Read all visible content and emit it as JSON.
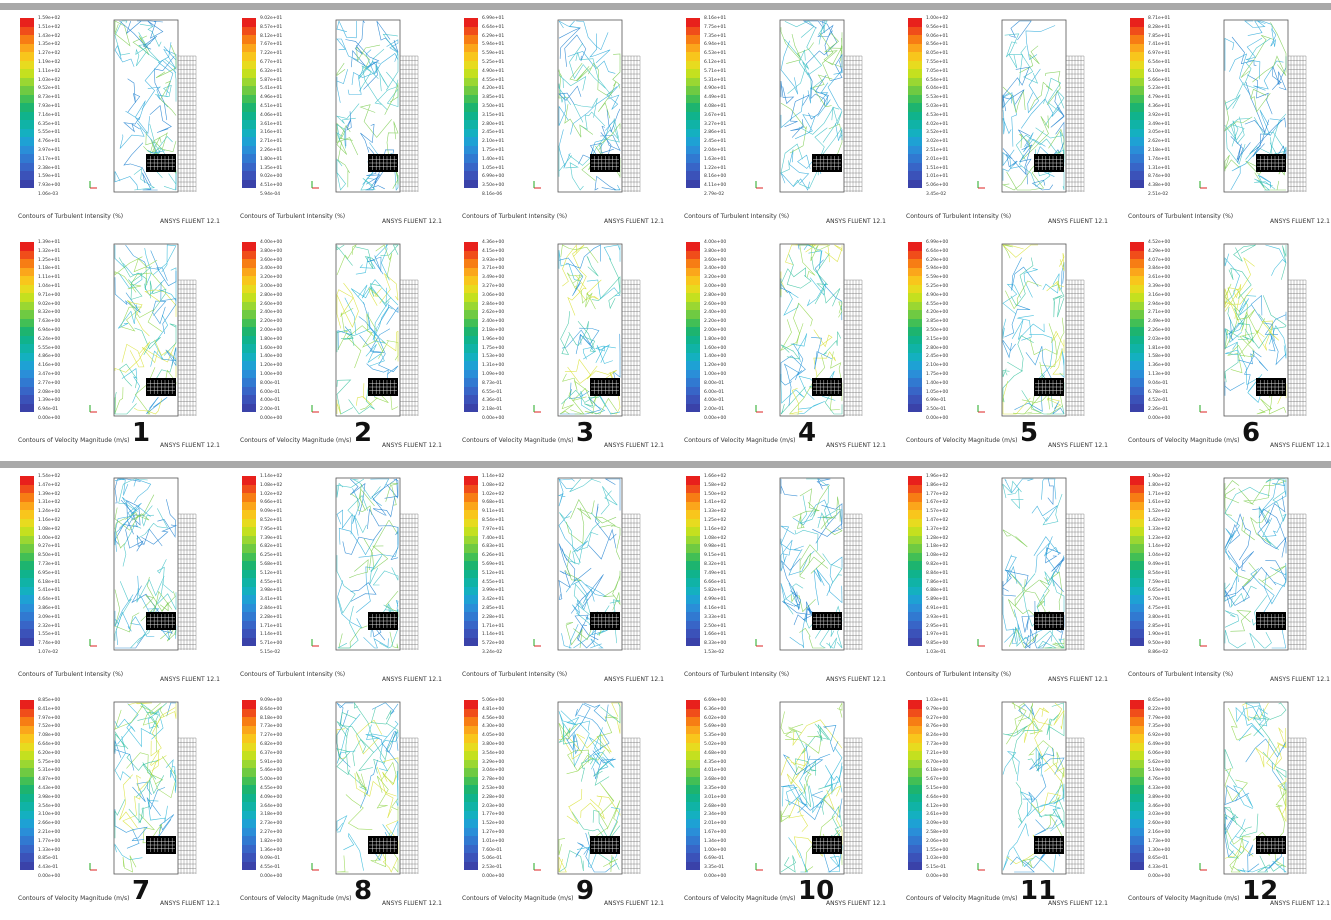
{
  "software_label": "ANSYS FLUENT 12.1",
  "colormap": [
    "#e8201c",
    "#f04d1a",
    "#f77d14",
    "#fba61b",
    "#f8c61c",
    "#e7db1f",
    "#c4e01f",
    "#9ad732",
    "#6fca42",
    "#42bf55",
    "#1db46f",
    "#10b38c",
    "#10b3a6",
    "#14b0c0",
    "#1ea1d4",
    "#2a8ed8",
    "#3179d1",
    "#3865c7",
    "#3b52b9",
    "#3a42a9"
  ],
  "groups": [
    {
      "row_top": [
        {
          "title": "Contours of Turbulent Intensity (%)",
          "ticks": [
            "1.59e+02",
            "1.51e+02",
            "1.43e+02",
            "1.35e+02",
            "1.27e+02",
            "1.19e+02",
            "1.11e+02",
            "1.03e+02",
            "9.52e+01",
            "8.73e+01",
            "7.93e+01",
            "7.14e+01",
            "6.35e+01",
            "5.55e+01",
            "4.76e+01",
            "3.97e+01",
            "3.17e+01",
            "2.38e+01",
            "1.59e+01",
            "7.93e+00",
            "1.06e-03"
          ]
        },
        {
          "title": "Contours of Turbulent Intensity (%)",
          "ticks": [
            "9.02e+01",
            "8.57e+01",
            "8.12e+01",
            "7.67e+01",
            "7.22e+01",
            "6.77e+01",
            "6.32e+01",
            "5.87e+01",
            "5.41e+01",
            "4.96e+01",
            "4.51e+01",
            "4.06e+01",
            "3.61e+01",
            "3.16e+01",
            "2.71e+01",
            "2.26e+01",
            "1.80e+01",
            "1.35e+01",
            "9.02e+00",
            "4.51e+00",
            "5.94e-04"
          ]
        },
        {
          "title": "Contours of Turbulent Intensity (%)",
          "ticks": [
            "6.99e+01",
            "6.64e+01",
            "6.29e+01",
            "5.94e+01",
            "5.59e+01",
            "5.25e+01",
            "4.90e+01",
            "4.55e+01",
            "4.20e+01",
            "3.85e+01",
            "3.50e+01",
            "3.15e+01",
            "2.80e+01",
            "2.45e+01",
            "2.10e+01",
            "1.75e+01",
            "1.40e+01",
            "1.05e+01",
            "6.99e+00",
            "3.50e+00",
            "8.16e-06"
          ]
        },
        {
          "title": "Contours of Turbulent Intensity (%)",
          "ticks": [
            "8.16e+01",
            "7.75e+01",
            "7.35e+01",
            "6.94e+01",
            "6.53e+01",
            "6.12e+01",
            "5.71e+01",
            "5.31e+01",
            "4.90e+01",
            "4.49e+01",
            "4.08e+01",
            "3.67e+01",
            "3.27e+01",
            "2.86e+01",
            "2.45e+01",
            "2.04e+01",
            "1.63e+01",
            "1.22e+01",
            "8.16e+00",
            "4.11e+00",
            "2.79e-02"
          ]
        },
        {
          "title": "Contours of Turbulent Intensity (%)",
          "ticks": [
            "1.00e+02",
            "9.56e+01",
            "9.06e+01",
            "8.56e+01",
            "8.05e+01",
            "7.55e+01",
            "7.05e+01",
            "6.54e+01",
            "6.04e+01",
            "5.53e+01",
            "5.03e+01",
            "4.53e+01",
            "4.02e+01",
            "3.52e+01",
            "3.02e+01",
            "2.51e+01",
            "2.01e+01",
            "1.51e+01",
            "1.01e+01",
            "5.06e+00",
            "3.45e-02"
          ]
        },
        {
          "title": "Contours of Turbulent Intensity (%)",
          "ticks": [
            "8.71e+01",
            "8.28e+01",
            "7.85e+01",
            "7.41e+01",
            "6.97e+01",
            "6.54e+01",
            "6.10e+01",
            "5.66e+01",
            "5.23e+01",
            "4.79e+01",
            "4.36e+01",
            "3.92e+01",
            "3.49e+01",
            "3.05e+01",
            "2.62e+01",
            "2.18e+01",
            "1.74e+01",
            "1.31e+01",
            "8.74e+00",
            "4.38e+00",
            "2.51e-02"
          ]
        }
      ],
      "row_bottom": [
        {
          "title": "Contours of Velocity Magnitude (m/s)",
          "num": "1",
          "ticks": [
            "1.39e+01",
            "1.32e+01",
            "1.25e+01",
            "1.18e+01",
            "1.11e+01",
            "1.04e+01",
            "9.71e+00",
            "9.02e+00",
            "8.32e+00",
            "7.63e+00",
            "6.94e+00",
            "6.24e+00",
            "5.55e+00",
            "4.86e+00",
            "4.16e+00",
            "3.47e+00",
            "2.77e+00",
            "2.08e+00",
            "1.39e+00",
            "6.94e-01",
            "0.00e+00"
          ]
        },
        {
          "title": "Contours of Velocity Magnitude (m/s)",
          "num": "2",
          "ticks": [
            "4.00e+00",
            "3.80e+00",
            "3.60e+00",
            "3.40e+00",
            "3.20e+00",
            "3.00e+00",
            "2.80e+00",
            "2.60e+00",
            "2.40e+00",
            "2.20e+00",
            "2.00e+00",
            "1.80e+00",
            "1.60e+00",
            "1.40e+00",
            "1.20e+00",
            "1.00e+00",
            "8.00e-01",
            "6.00e-01",
            "4.00e-01",
            "2.00e-01",
            "0.00e+00"
          ]
        },
        {
          "title": "Contours of Velocity Magnitude (m/s)",
          "num": "3",
          "ticks": [
            "4.36e+00",
            "4.15e+00",
            "3.93e+00",
            "3.71e+00",
            "3.49e+00",
            "3.27e+00",
            "3.06e+00",
            "2.84e+00",
            "2.62e+00",
            "2.40e+00",
            "2.18e+00",
            "1.96e+00",
            "1.75e+00",
            "1.53e+00",
            "1.31e+00",
            "1.09e+00",
            "8.73e-01",
            "6.55e-01",
            "4.36e-01",
            "2.18e-01",
            "0.00e+00"
          ]
        },
        {
          "title": "Contours of Velocity Magnitude (m/s)",
          "num": "4",
          "ticks": [
            "4.00e+00",
            "3.80e+00",
            "3.60e+00",
            "3.40e+00",
            "3.20e+00",
            "3.00e+00",
            "2.80e+00",
            "2.60e+00",
            "2.40e+00",
            "2.20e+00",
            "2.00e+00",
            "1.80e+00",
            "1.60e+00",
            "1.40e+00",
            "1.20e+00",
            "1.00e+00",
            "8.00e-01",
            "6.00e-01",
            "4.00e-01",
            "2.00e-01",
            "0.00e+00"
          ]
        },
        {
          "title": "Contours of Velocity Magnitude (m/s)",
          "num": "5",
          "ticks": [
            "6.99e+00",
            "6.64e+00",
            "6.29e+00",
            "5.94e+00",
            "5.59e+00",
            "5.25e+00",
            "4.90e+00",
            "4.55e+00",
            "4.20e+00",
            "3.85e+00",
            "3.50e+00",
            "3.15e+00",
            "2.80e+00",
            "2.45e+00",
            "2.10e+00",
            "1.75e+00",
            "1.40e+00",
            "1.05e+00",
            "6.99e-01",
            "3.50e-01",
            "0.00e+00"
          ]
        },
        {
          "title": "Contours of Velocity Magnitude (m/s)",
          "num": "6",
          "ticks": [
            "4.52e+00",
            "4.29e+00",
            "4.07e+00",
            "3.84e+00",
            "3.61e+00",
            "3.39e+00",
            "3.16e+00",
            "2.94e+00",
            "2.71e+00",
            "2.49e+00",
            "2.26e+00",
            "2.03e+00",
            "1.81e+00",
            "1.58e+00",
            "1.36e+00",
            "1.13e+00",
            "9.04e-01",
            "6.78e-01",
            "4.52e-01",
            "2.26e-01",
            "0.00e+00"
          ]
        }
      ]
    },
    {
      "row_top": [
        {
          "title": "Contours of Turbulent Intensity (%)",
          "ticks": [
            "1.54e+02",
            "1.47e+02",
            "1.39e+02",
            "1.31e+02",
            "1.24e+02",
            "1.16e+02",
            "1.08e+02",
            "1.00e+02",
            "9.27e+01",
            "8.50e+01",
            "7.73e+01",
            "6.95e+01",
            "6.18e+01",
            "5.41e+01",
            "4.64e+01",
            "3.86e+01",
            "3.09e+01",
            "2.32e+01",
            "1.55e+01",
            "7.74e+00",
            "1.07e-02"
          ]
        },
        {
          "title": "Contours of Turbulent Intensity (%)",
          "ticks": [
            "1.14e+02",
            "1.08e+02",
            "1.02e+02",
            "9.66e+01",
            "9.09e+01",
            "8.52e+01",
            "7.95e+01",
            "7.39e+01",
            "6.82e+01",
            "6.25e+01",
            "5.68e+01",
            "5.12e+01",
            "4.55e+01",
            "3.98e+01",
            "3.41e+01",
            "2.84e+01",
            "2.28e+01",
            "1.71e+01",
            "1.14e+01",
            "5.71e+00",
            "5.15e-02"
          ]
        },
        {
          "title": "Contours of Turbulent Intensity (%)",
          "ticks": [
            "1.14e+02",
            "1.08e+02",
            "1.02e+02",
            "9.68e+01",
            "9.11e+01",
            "8.54e+01",
            "7.97e+01",
            "7.40e+01",
            "6.83e+01",
            "6.26e+01",
            "5.69e+01",
            "5.12e+01",
            "4.55e+01",
            "3.99e+01",
            "3.42e+01",
            "2.85e+01",
            "2.28e+01",
            "1.71e+01",
            "1.14e+01",
            "5.72e+00",
            "3.24e-02"
          ]
        },
        {
          "title": "Contours of Turbulent Intensity (%)",
          "ticks": [
            "1.66e+02",
            "1.58e+02",
            "1.50e+02",
            "1.41e+02",
            "1.33e+02",
            "1.25e+02",
            "1.16e+02",
            "1.08e+02",
            "9.98e+01",
            "9.15e+01",
            "8.32e+01",
            "7.49e+01",
            "6.66e+01",
            "5.82e+01",
            "4.99e+01",
            "4.16e+01",
            "3.33e+01",
            "2.50e+01",
            "1.66e+01",
            "8.33e+00",
            "1.53e-02"
          ]
        },
        {
          "title": "Contours of Turbulent Intensity (%)",
          "ticks": [
            "1.96e+02",
            "1.86e+02",
            "1.77e+02",
            "1.67e+02",
            "1.57e+02",
            "1.47e+02",
            "1.37e+02",
            "1.28e+02",
            "1.18e+02",
            "1.08e+02",
            "9.82e+01",
            "8.84e+01",
            "7.86e+01",
            "6.88e+01",
            "5.89e+01",
            "4.91e+01",
            "3.93e+01",
            "2.95e+01",
            "1.97e+01",
            "9.85e+00",
            "1.03e-01"
          ]
        },
        {
          "title": "Contours of Turbulent Intensity (%)",
          "ticks": [
            "1.90e+02",
            "1.80e+02",
            "1.71e+02",
            "1.61e+02",
            "1.52e+02",
            "1.42e+02",
            "1.33e+02",
            "1.23e+02",
            "1.14e+02",
            "1.04e+02",
            "9.49e+01",
            "8.54e+01",
            "7.59e+01",
            "6.65e+01",
            "5.70e+01",
            "4.75e+01",
            "3.80e+01",
            "2.85e+01",
            "1.90e+01",
            "9.50e+00",
            "8.86e-02"
          ]
        }
      ],
      "row_bottom": [
        {
          "title": "Contours of Velocity Magnitude (m/s)",
          "num": "7",
          "ticks": [
            "8.85e+00",
            "8.41e+00",
            "7.97e+00",
            "7.52e+00",
            "7.08e+00",
            "6.64e+00",
            "6.20e+00",
            "5.75e+00",
            "5.31e+00",
            "4.87e+00",
            "4.43e+00",
            "3.98e+00",
            "3.54e+00",
            "3.10e+00",
            "2.66e+00",
            "2.21e+00",
            "1.77e+00",
            "1.33e+00",
            "8.85e-01",
            "4.43e-01",
            "0.00e+00"
          ]
        },
        {
          "title": "Contours of Velocity Magnitude (m/s)",
          "num": "8",
          "ticks": [
            "9.09e+00",
            "8.64e+00",
            "8.18e+00",
            "7.73e+00",
            "7.27e+00",
            "6.82e+00",
            "6.37e+00",
            "5.91e+00",
            "5.46e+00",
            "5.00e+00",
            "4.55e+00",
            "4.09e+00",
            "3.64e+00",
            "3.18e+00",
            "2.73e+00",
            "2.27e+00",
            "1.82e+00",
            "1.36e+00",
            "9.09e-01",
            "4.55e-01",
            "0.00e+00"
          ]
        },
        {
          "title": "Contours of Velocity Magnitude (m/s)",
          "num": "9",
          "ticks": [
            "5.06e+00",
            "4.81e+00",
            "4.56e+00",
            "4.30e+00",
            "4.05e+00",
            "3.80e+00",
            "3.54e+00",
            "3.29e+00",
            "3.04e+00",
            "2.78e+00",
            "2.53e+00",
            "2.28e+00",
            "2.03e+00",
            "1.77e+00",
            "1.52e+00",
            "1.27e+00",
            "1.01e+00",
            "7.60e-01",
            "5.06e-01",
            "2.53e-01",
            "0.00e+00"
          ]
        },
        {
          "title": "Contours of Velocity Magnitude (m/s)",
          "num": "10",
          "ticks": [
            "6.69e+00",
            "6.36e+00",
            "6.02e+00",
            "5.69e+00",
            "5.35e+00",
            "5.02e+00",
            "4.68e+00",
            "4.35e+00",
            "4.01e+00",
            "3.68e+00",
            "3.35e+00",
            "3.01e+00",
            "2.68e+00",
            "2.34e+00",
            "2.01e+00",
            "1.67e+00",
            "1.34e+00",
            "1.00e+00",
            "6.69e-01",
            "3.35e-01",
            "0.00e+00"
          ]
        },
        {
          "title": "Contours of Velocity Magnitude (m/s)",
          "num": "11",
          "ticks": [
            "1.03e+01",
            "9.79e+00",
            "9.27e+00",
            "8.76e+00",
            "8.24e+00",
            "7.73e+00",
            "7.21e+00",
            "6.70e+00",
            "6.18e+00",
            "5.67e+00",
            "5.15e+00",
            "4.64e+00",
            "4.12e+00",
            "3.61e+00",
            "3.09e+00",
            "2.58e+00",
            "2.06e+00",
            "1.55e+00",
            "1.03e+00",
            "5.15e-01",
            "0.00e+00"
          ]
        },
        {
          "title": "Contours of Velocity Magnitude (m/s)",
          "num": "12",
          "ticks": [
            "8.65e+00",
            "8.22e+00",
            "7.79e+00",
            "7.35e+00",
            "6.92e+00",
            "6.49e+00",
            "6.06e+00",
            "5.62e+00",
            "5.19e+00",
            "4.76e+00",
            "4.33e+00",
            "3.89e+00",
            "3.46e+00",
            "3.03e+00",
            "2.60e+00",
            "2.16e+00",
            "1.73e+00",
            "1.30e+00",
            "8.65e-01",
            "4.33e-01",
            "0.00e+00"
          ]
        }
      ]
    }
  ]
}
